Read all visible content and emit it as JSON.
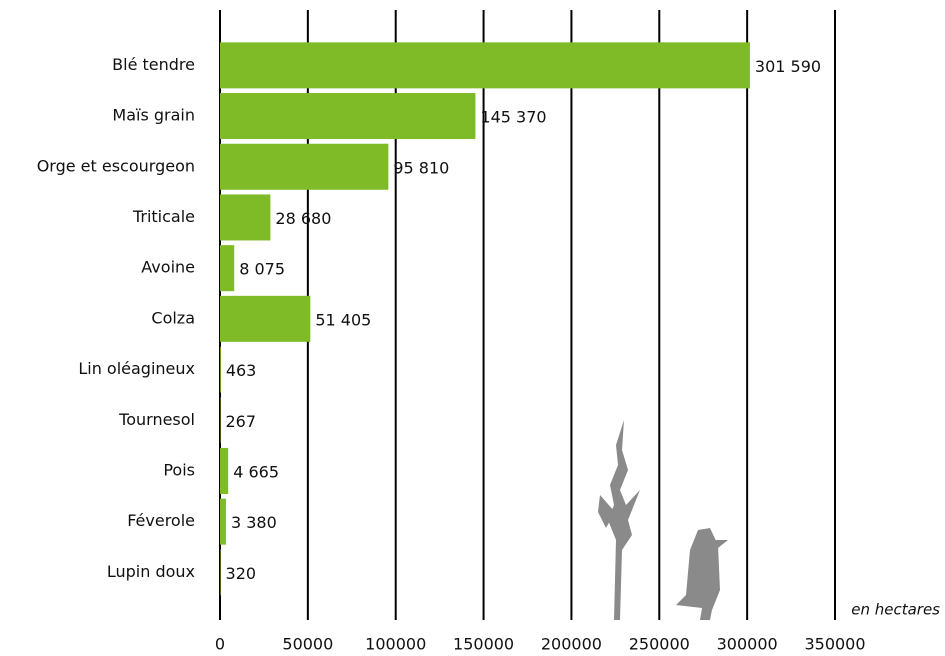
{
  "chart_data": {
    "type": "bar",
    "orientation": "horizontal",
    "categories": [
      "Blé tendre",
      "Maïs grain",
      "Orge et escourgeon",
      "Triticale",
      "Avoine",
      "Colza",
      "Lin oléagineux",
      "Tournesol",
      "Pois",
      "Féverole",
      "Lupin doux"
    ],
    "values": [
      301590,
      145370,
      95810,
      28680,
      8075,
      51405,
      463,
      267,
      4665,
      3380,
      320
    ],
    "value_labels": [
      "301 590",
      "145 370",
      "95 810",
      "28 680",
      "8 075",
      "51 405",
      "463",
      "267",
      "4 665",
      "3 380",
      "320"
    ],
    "color": "#7fba27",
    "xlim": [
      0,
      350000
    ],
    "xticks": [
      0,
      50000,
      100000,
      150000,
      200000,
      250000,
      300000,
      350000
    ],
    "grid": true,
    "annotation": "en hectares"
  }
}
